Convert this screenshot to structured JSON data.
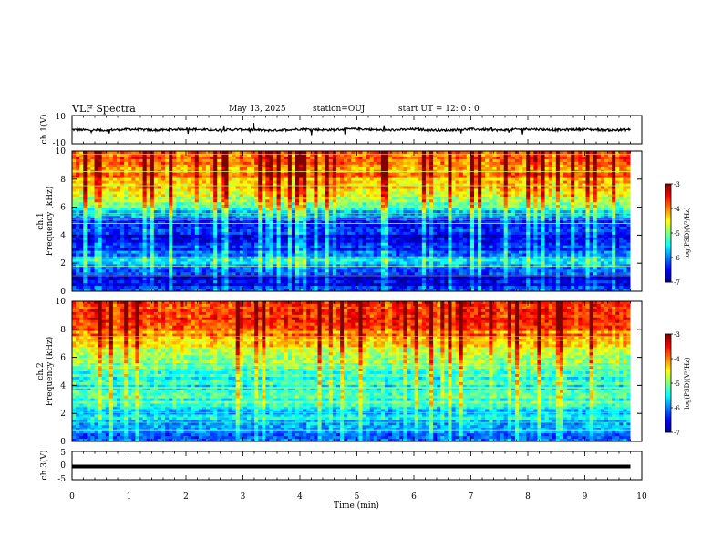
{
  "header": {
    "title": "VLF Spectra",
    "date": "May 13, 2025",
    "station": "station=OUJ",
    "start": "start  UT =   12: 0  : 0"
  },
  "colorbar": {
    "label": "log(PSD)(V²/Hz)",
    "ticks": [
      "-3",
      "-4",
      "-5",
      "-6",
      "-7"
    ],
    "range": [
      -7,
      -3
    ],
    "colormap": [
      "#00008f",
      "#0000ff",
      "#0080ff",
      "#00ffff",
      "#80ff80",
      "#ffff00",
      "#ff8000",
      "#ff0000",
      "#800000"
    ]
  },
  "chart_data": [
    {
      "type": "line",
      "name": "ch1-waveform",
      "ylabel": "ch.1(V)",
      "ylim": [
        -10,
        10
      ],
      "yticks": [
        "10",
        "-10"
      ],
      "x": [
        0,
        0.5,
        1,
        1.5,
        2,
        2.5,
        3,
        3.5,
        4,
        4.5,
        5,
        5.5,
        6,
        6.5,
        7,
        7.5,
        8,
        8.5,
        9,
        9.5,
        9.8
      ],
      "y": [
        0,
        -0.5,
        0.3,
        -0.4,
        0.5,
        -0.3,
        0.2,
        -0.6,
        0.4,
        -0.2,
        0.6,
        -0.4,
        0.3,
        -0.5,
        0.4,
        -0.3,
        0.5,
        -0.2,
        0.3,
        -0.4,
        0.1
      ],
      "color": "#000000"
    },
    {
      "type": "heatmap",
      "name": "ch1-spectrogram",
      "ylabel": "ch.1",
      "ylabel2": "Frequency  (kHz)",
      "ylim": [
        0,
        10
      ],
      "yticks": [
        "10",
        "8",
        "6",
        "4",
        "2",
        "0"
      ],
      "xlim": [
        0,
        9.8
      ],
      "level_by_freq_khz": {
        "freq": [
          0,
          1,
          2,
          3,
          4,
          5,
          6,
          7,
          8,
          9,
          10
        ],
        "log_psd": [
          -6.4,
          -6.6,
          -5.6,
          -6.3,
          -6.6,
          -6.2,
          -5.2,
          -4.6,
          -4.2,
          -4.0,
          -4.1
        ]
      }
    },
    {
      "type": "heatmap",
      "name": "ch2-spectrogram",
      "ylabel": "ch.2",
      "ylabel2": "Frequency  (kHz)",
      "ylim": [
        0,
        10
      ],
      "yticks": [
        "10",
        "8",
        "6",
        "4",
        "2",
        "0"
      ],
      "xlim": [
        0,
        9.8
      ],
      "level_by_freq_khz": {
        "freq": [
          0,
          1,
          2,
          3,
          4,
          5,
          6,
          7,
          8,
          9,
          10
        ],
        "log_psd": [
          -6.2,
          -6.0,
          -5.6,
          -5.3,
          -5.4,
          -5.2,
          -4.8,
          -4.3,
          -3.9,
          -3.7,
          -3.6
        ]
      }
    },
    {
      "type": "line",
      "name": "ch3-waveform",
      "ylabel": "ch.3(V)",
      "ylim": [
        -5,
        5
      ],
      "yticks": [
        "5",
        "0",
        "-5"
      ],
      "x": [
        0,
        9.8
      ],
      "y": [
        0,
        0
      ],
      "color": "#000000"
    }
  ],
  "xaxis": {
    "label": "Time  (min)",
    "ticks": [
      "0",
      "1",
      "2",
      "3",
      "4",
      "5",
      "6",
      "7",
      "8",
      "9",
      "10"
    ],
    "range": [
      0,
      10
    ]
  }
}
